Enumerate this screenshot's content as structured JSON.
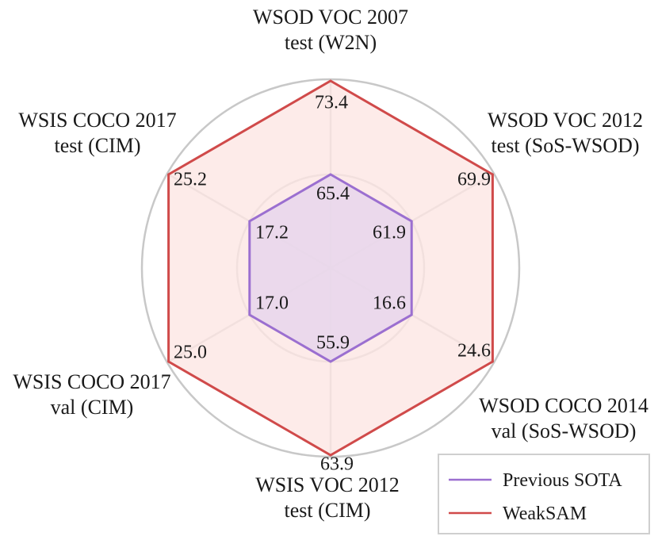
{
  "chart_data": {
    "type": "radar",
    "axes": [
      {
        "lines": [
          "WSOD VOC 2007",
          "test (W2N)"
        ]
      },
      {
        "lines": [
          "WSOD VOC 2012",
          "test (SoS-WSOD)"
        ]
      },
      {
        "lines": [
          "WSOD COCO 2014",
          "val (SoS-WSOD)"
        ]
      },
      {
        "lines": [
          "WSIS VOC 2012",
          "test (CIM)"
        ]
      },
      {
        "lines": [
          "WSIS COCO 2017",
          "val (CIM)"
        ]
      },
      {
        "lines": [
          "WSIS COCO 2017",
          "test (CIM)"
        ]
      }
    ],
    "series": [
      {
        "name": "Previous SOTA",
        "color": "#9b6fd0",
        "fill": "#e8d6ec",
        "values": [
          65.4,
          61.9,
          16.6,
          55.9,
          17.0,
          17.2
        ],
        "labels": [
          "65.4",
          "61.9",
          "16.6",
          "55.9",
          "17.0",
          "17.2"
        ],
        "level": 0.5
      },
      {
        "name": "WeakSAM",
        "color": "#d04a4a",
        "fill": "#fde6e3",
        "values": [
          73.4,
          69.9,
          24.6,
          63.9,
          25.0,
          25.2
        ],
        "labels": [
          "73.4",
          "69.9",
          "24.6",
          "63.9",
          "25.0",
          "25.2"
        ],
        "level": 1.0
      }
    ],
    "grid_color": "#c8c8c8",
    "grid": true,
    "legend_position": "bottom-right"
  }
}
